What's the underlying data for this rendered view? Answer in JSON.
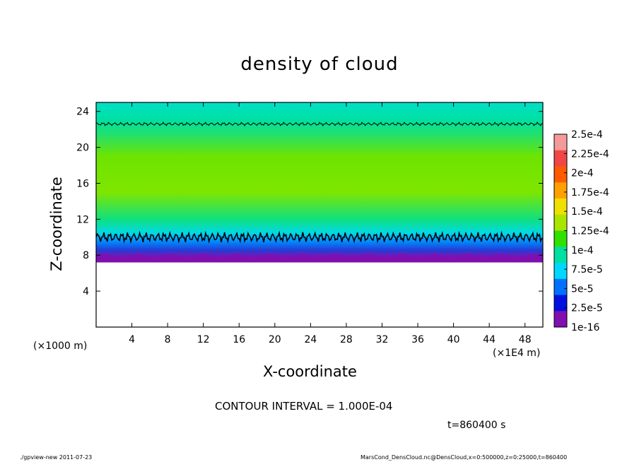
{
  "chart_data": {
    "type": "heatmap",
    "title": "density of cloud",
    "xlabel": "X-coordinate",
    "ylabel": "Z-coordinate",
    "x_unit_left": "(×1000 m)",
    "x_unit_right": "(×1E4 m)",
    "xlim": [
      0,
      50
    ],
    "ylim": [
      0,
      25
    ],
    "x_ticks": [
      4,
      8,
      12,
      16,
      20,
      24,
      28,
      32,
      36,
      40,
      44,
      48
    ],
    "y_ticks": [
      4,
      8,
      12,
      16,
      20,
      24
    ],
    "colorbar_labels": [
      "2.5e-4",
      "2.25e-4",
      "2e-4",
      "1.75e-4",
      "1.5e-4",
      "1.25e-4",
      "1e-4",
      "7.5e-5",
      "5e-5",
      "2.5e-5",
      "1e-16"
    ],
    "colorbar_colors": [
      "#f59a9a",
      "#f04646",
      "#ff5a00",
      "#ffa000",
      "#f0e000",
      "#a8e600",
      "#32e000",
      "#00e0a0",
      "#00d8ff",
      "#0070ff",
      "#0010e0",
      "#8010b0"
    ],
    "profile": [
      {
        "z": 7.2,
        "color": "#ffffff"
      },
      {
        "z": 7.8,
        "color": "#8010b0"
      },
      {
        "z": 8.6,
        "color": "#2040d8"
      },
      {
        "z": 9.6,
        "color": "#0090ff"
      },
      {
        "z": 10.4,
        "color": "#00d8e8"
      },
      {
        "z": 12.0,
        "color": "#10e080"
      },
      {
        "z": 15.0,
        "color": "#7ee600"
      },
      {
        "z": 19.0,
        "color": "#6ee400"
      },
      {
        "z": 21.5,
        "color": "#20e070"
      },
      {
        "z": 23.0,
        "color": "#00e0a0"
      },
      {
        "z": 25.0,
        "color": "#00e0c8"
      }
    ],
    "contours": [
      {
        "level": "1e-4",
        "z": 10.0,
        "color": "#000000"
      },
      {
        "level": "1e-4",
        "z": 22.6,
        "color": "#000000"
      }
    ]
  },
  "contour_interval": "CONTOUR INTERVAL = 1.000E-04",
  "time_label": "t=860400 s",
  "footer_left": "./gpview-new   2011-07-23",
  "footer_right": "MarsCond_DensCloud.nc@DensCloud,x=0:500000,z=0:25000,t=860400"
}
